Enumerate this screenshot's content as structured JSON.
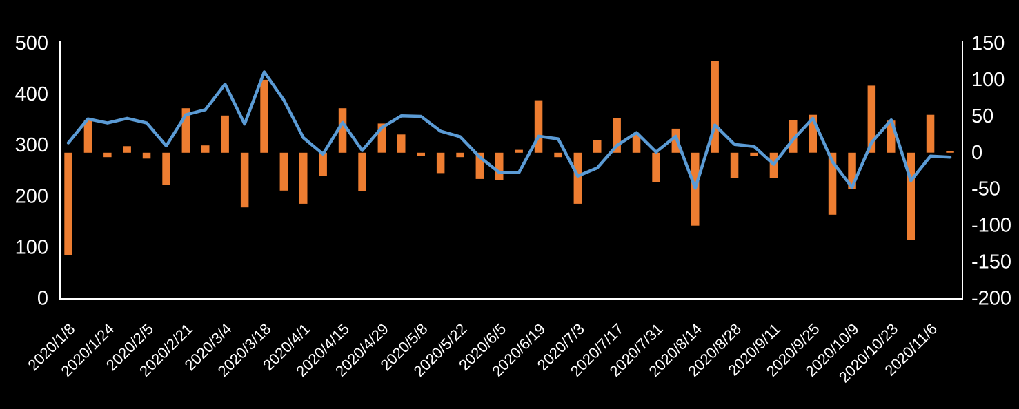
{
  "figure": {
    "background_color": "#000000",
    "text_color": "#ffffff",
    "axis_line_color": "#ffffff",
    "bar_color": "#ED7D31",
    "line_color": "#5B9BD5",
    "title": "",
    "legend": "none"
  },
  "chart_data": {
    "type": "combo",
    "grid": false,
    "left_axis": {
      "min": 0,
      "max": 500,
      "ticks": [
        0,
        100,
        200,
        300,
        400,
        500
      ]
    },
    "right_axis": {
      "min": -200,
      "max": 150,
      "ticks": [
        150,
        100,
        50,
        0,
        -50,
        -100,
        -150,
        -200
      ]
    },
    "x_tick_labels": [
      "2020/1/8",
      "2020/1/24",
      "2020/2/5",
      "2020/2/21",
      "2020/3/4",
      "2020/3/18",
      "2020/4/1",
      "2020/4/15",
      "2020/4/29",
      "2020/5/8",
      "2020/5/22",
      "2020/6/5",
      "2020/6/19",
      "2020/7/3",
      "2020/7/17",
      "2020/7/31",
      "2020/8/14",
      "2020/8/28",
      "2020/9/11",
      "2020/9/25",
      "2020/10/9",
      "2020/10/23",
      "2020/11/6"
    ],
    "x_label_step": 2,
    "n_points": 46,
    "series": [
      {
        "name": "bars",
        "type": "bar",
        "axis": "right",
        "color": "#ED7D31",
        "values": [
          -140,
          45,
          -6,
          9,
          -8,
          -44,
          61,
          10,
          51,
          -75,
          100,
          -52,
          -70,
          -32,
          61,
          -53,
          40,
          25,
          -4,
          -28,
          -6,
          -36,
          -38,
          4,
          72,
          -6,
          -70,
          17,
          47,
          25,
          -40,
          33,
          -100,
          126,
          -35,
          -4,
          -35,
          45,
          52,
          -85,
          -50,
          92,
          44,
          -120,
          52,
          2
        ]
      },
      {
        "name": "line",
        "type": "line",
        "axis": "left",
        "color": "#5B9BD5",
        "values": [
          305,
          352,
          344,
          353,
          344,
          299,
          360,
          370,
          420,
          342,
          444,
          389,
          315,
          283,
          345,
          290,
          335,
          358,
          357,
          328,
          317,
          277,
          247,
          247,
          318,
          313,
          240,
          256,
          300,
          325,
          287,
          318,
          216,
          340,
          302,
          298,
          263,
          312,
          353,
          268,
          218,
          306,
          350,
          231,
          279,
          277
        ]
      }
    ]
  }
}
